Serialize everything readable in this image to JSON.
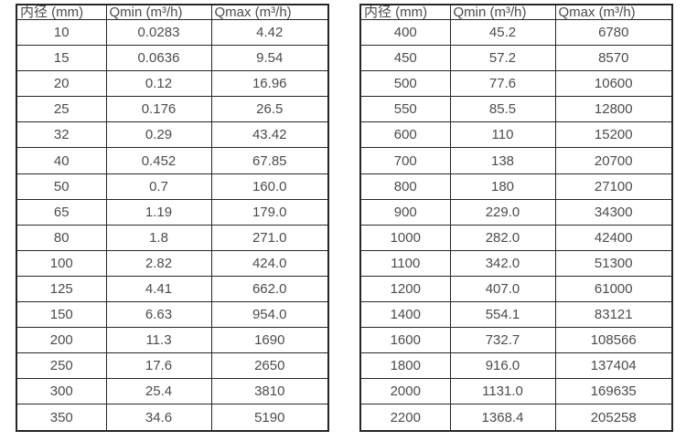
{
  "colors": {
    "text": "#4c4c4c",
    "border": "#262626",
    "background": "#ffffff"
  },
  "tables": [
    {
      "name": "small-diameter-flow-table",
      "headers": [
        "内径 (mm)",
        "Qmin (m³/h)",
        "Qmax (m³/h)"
      ],
      "rows": [
        [
          "10",
          "0.0283",
          "4.42"
        ],
        [
          "15",
          "0.0636",
          "9.54"
        ],
        [
          "20",
          "0.12",
          "16.96"
        ],
        [
          "25",
          "0.176",
          "26.5"
        ],
        [
          "32",
          "0.29",
          "43.42"
        ],
        [
          "40",
          "0.452",
          "67.85"
        ],
        [
          "50",
          "0.7",
          "160.0"
        ],
        [
          "65",
          "1.19",
          "179.0"
        ],
        [
          "80",
          "1.8",
          "271.0"
        ],
        [
          "100",
          "2.82",
          "424.0"
        ],
        [
          "125",
          "4.41",
          "662.0"
        ],
        [
          "150",
          "6.63",
          "954.0"
        ],
        [
          "200",
          "11.3",
          "1690"
        ],
        [
          "250",
          "17.6",
          "2650"
        ],
        [
          "300",
          "25.4",
          "3810"
        ],
        [
          "350",
          "34.6",
          "5190"
        ]
      ]
    },
    {
      "name": "large-diameter-flow-table",
      "headers": [
        "内径 (mm)",
        "Qmin (m³/h)",
        "Qmax (m³/h)"
      ],
      "rows": [
        [
          "400",
          "45.2",
          "6780"
        ],
        [
          "450",
          "57.2",
          "8570"
        ],
        [
          "500",
          "77.6",
          "10600"
        ],
        [
          "550",
          "85.5",
          "12800"
        ],
        [
          "600",
          "110",
          "15200"
        ],
        [
          "700",
          "138",
          "20700"
        ],
        [
          "800",
          "180",
          "27100"
        ],
        [
          "900",
          "229.0",
          "34300"
        ],
        [
          "1000",
          "282.0",
          "42400"
        ],
        [
          "1100",
          "342.0",
          "51300"
        ],
        [
          "1200",
          "407.0",
          "61000"
        ],
        [
          "1400",
          "554.1",
          "83121"
        ],
        [
          "1600",
          "732.7",
          "108566"
        ],
        [
          "1800",
          "916.0",
          "137404"
        ],
        [
          "2000",
          "1131.0",
          "169635"
        ],
        [
          "2200",
          "1368.4",
          "205258"
        ]
      ]
    }
  ]
}
